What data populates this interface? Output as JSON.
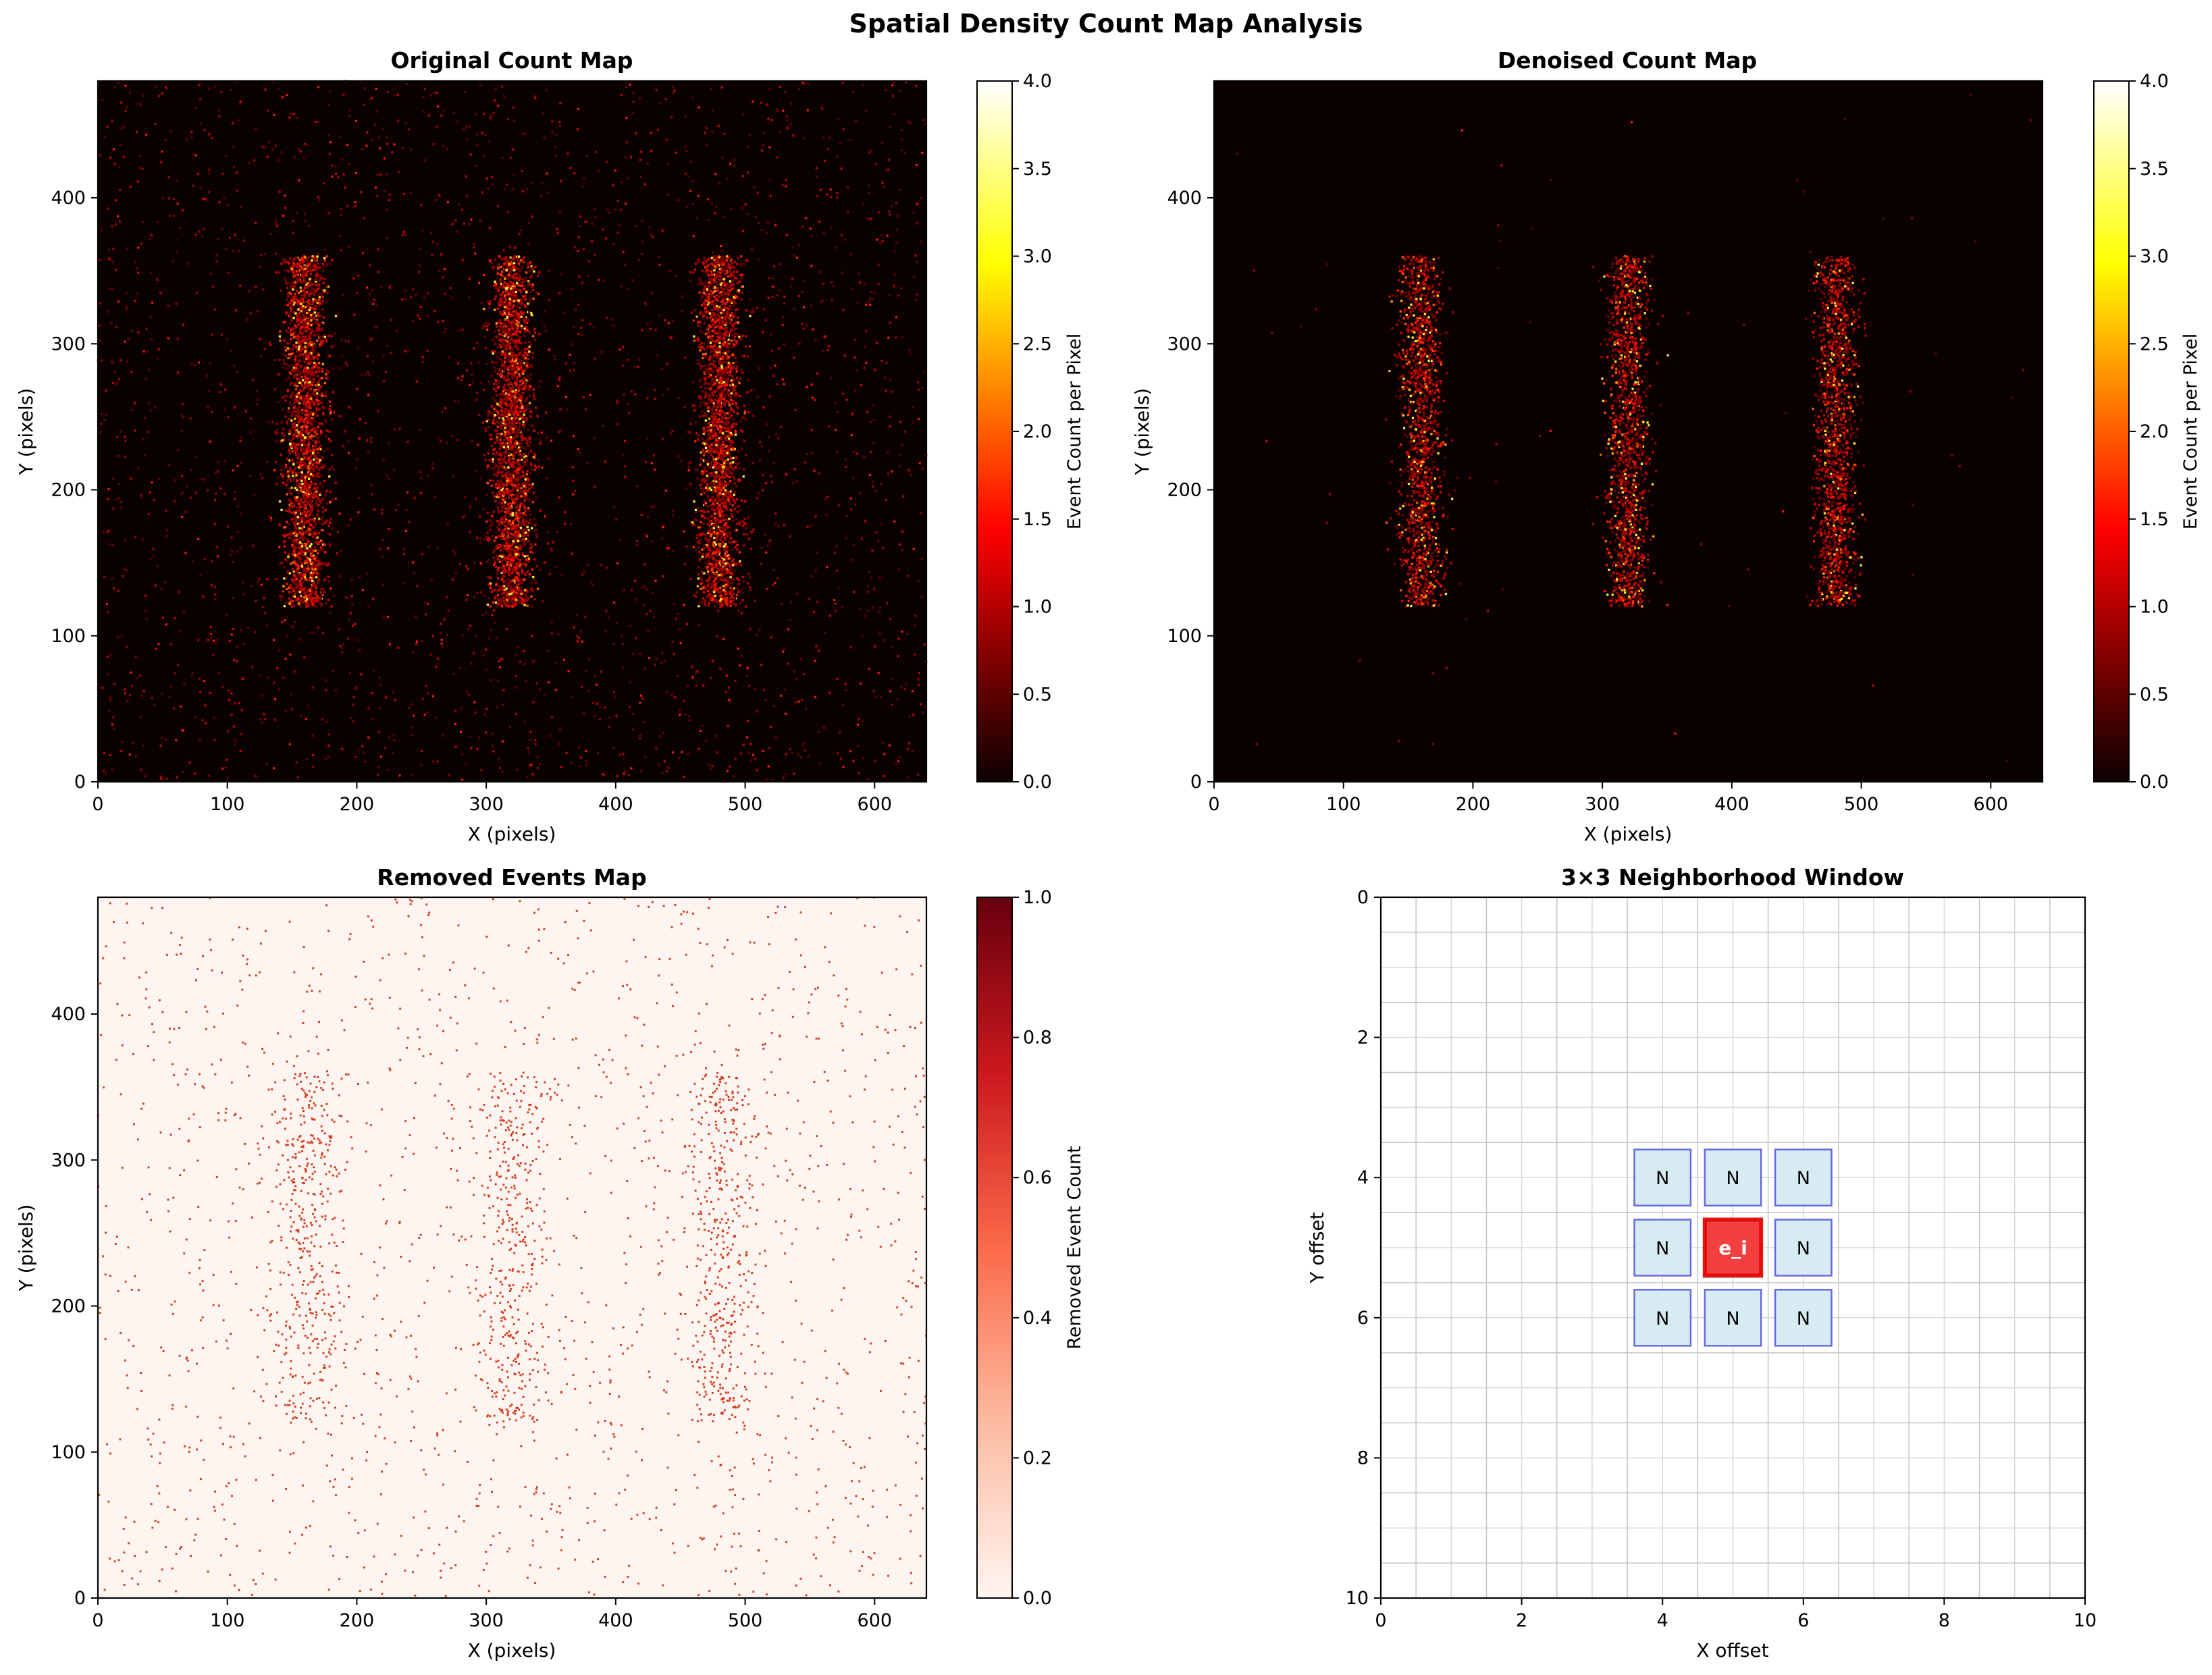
{
  "suptitle": "Spatial Density Count Map Analysis",
  "colors": {
    "background_hot": "#0b0000",
    "removed_bg": "#fff5f0",
    "event_red": "#cc0000",
    "removed_dot": "#d23a1e",
    "neighbor_fill": "#d6ebf2",
    "neighbor_edge": "#3b3bd6",
    "center_fill": "#f24040",
    "center_edge": "#e00000"
  },
  "chart_data": [
    {
      "type": "heatmap",
      "id": "original",
      "title": "Original Count Map",
      "xlabel": "X (pixels)",
      "ylabel": "Y (pixels)",
      "xlim": [
        0,
        640
      ],
      "ylim": [
        480,
        0
      ],
      "xticks": [
        0,
        100,
        200,
        300,
        400,
        500,
        600
      ],
      "yticks": [
        0,
        100,
        200,
        300,
        400
      ],
      "colorbar": {
        "label": "Event Count per Pixel",
        "vmin": 0.0,
        "vmax": 4.0,
        "ticks": [
          "0.0",
          "0.5",
          "1.0",
          "1.5",
          "2.0",
          "2.5",
          "3.0",
          "3.5",
          "4.0"
        ],
        "cmap": "hot"
      },
      "bands": [
        {
          "x_center": 160,
          "y_start": 120,
          "y_end": 360
        },
        {
          "x_center": 320,
          "y_start": 120,
          "y_end": 360
        },
        {
          "x_center": 480,
          "y_start": 120,
          "y_end": 360
        }
      ],
      "noise_level": "high"
    },
    {
      "type": "heatmap",
      "id": "denoised",
      "title": "Denoised Count Map",
      "xlabel": "X (pixels)",
      "ylabel": "Y (pixels)",
      "xlim": [
        0,
        640
      ],
      "ylim": [
        480,
        0
      ],
      "xticks": [
        0,
        100,
        200,
        300,
        400,
        500,
        600
      ],
      "yticks": [
        0,
        100,
        200,
        300,
        400
      ],
      "colorbar": {
        "label": "Event Count per Pixel",
        "vmin": 0.0,
        "vmax": 4.0,
        "ticks": [
          "0.0",
          "0.5",
          "1.0",
          "1.5",
          "2.0",
          "2.5",
          "3.0",
          "3.5",
          "4.0"
        ],
        "cmap": "hot"
      },
      "bands": [
        {
          "x_center": 160,
          "y_start": 120,
          "y_end": 360
        },
        {
          "x_center": 320,
          "y_start": 120,
          "y_end": 360
        },
        {
          "x_center": 480,
          "y_start": 120,
          "y_end": 360
        }
      ],
      "noise_level": "low"
    },
    {
      "type": "heatmap",
      "id": "removed",
      "title": "Removed Events Map",
      "xlabel": "X (pixels)",
      "ylabel": "Y (pixels)",
      "xlim": [
        0,
        640
      ],
      "ylim": [
        480,
        0
      ],
      "xticks": [
        0,
        100,
        200,
        300,
        400,
        500,
        600
      ],
      "yticks": [
        0,
        100,
        200,
        300,
        400
      ],
      "colorbar": {
        "label": "Removed Event Count",
        "vmin": 0.0,
        "vmax": 1.0,
        "ticks": [
          "0.0",
          "0.2",
          "0.4",
          "0.6",
          "0.8",
          "1.0"
        ],
        "cmap": "Reds"
      },
      "bands": [
        {
          "x_center": 160,
          "y_start": 120,
          "y_end": 360
        },
        {
          "x_center": 320,
          "y_start": 120,
          "y_end": 360
        },
        {
          "x_center": 480,
          "y_start": 120,
          "y_end": 360
        }
      ]
    },
    {
      "type": "scatter",
      "id": "neighborhood",
      "title": "3×3 Neighborhood Window",
      "xlabel": "X offset",
      "ylabel": "Y offset",
      "xlim": [
        0,
        10
      ],
      "ylim": [
        0,
        10
      ],
      "xticks": [
        0,
        2,
        4,
        6,
        8,
        10
      ],
      "yticks": [
        0,
        2,
        4,
        6,
        8,
        10
      ],
      "grid": true,
      "cells": [
        {
          "x": 4,
          "y": 6,
          "label": "N",
          "role": "neighbor"
        },
        {
          "x": 5,
          "y": 6,
          "label": "N",
          "role": "neighbor"
        },
        {
          "x": 6,
          "y": 6,
          "label": "N",
          "role": "neighbor"
        },
        {
          "x": 4,
          "y": 5,
          "label": "N",
          "role": "neighbor"
        },
        {
          "x": 5,
          "y": 5,
          "label": "e_i",
          "role": "center"
        },
        {
          "x": 6,
          "y": 5,
          "label": "N",
          "role": "neighbor"
        },
        {
          "x": 4,
          "y": 4,
          "label": "N",
          "role": "neighbor"
        },
        {
          "x": 5,
          "y": 4,
          "label": "N",
          "role": "neighbor"
        },
        {
          "x": 6,
          "y": 4,
          "label": "N",
          "role": "neighbor"
        }
      ]
    }
  ]
}
